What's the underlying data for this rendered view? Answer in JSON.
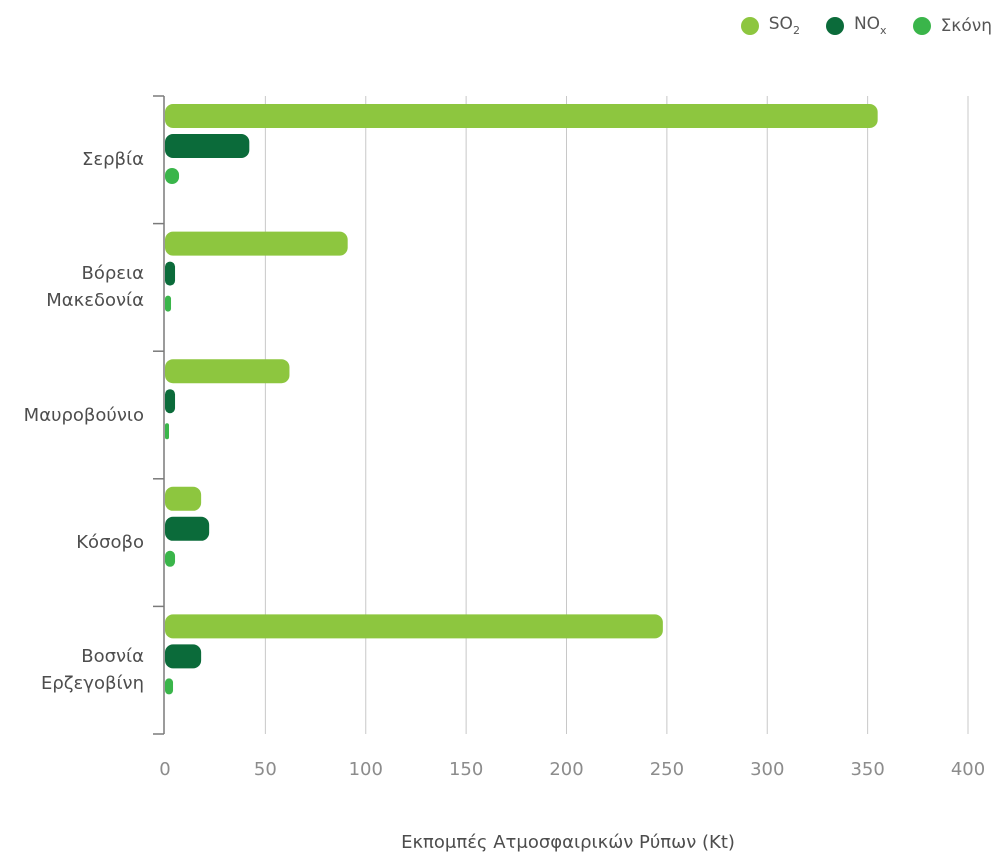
{
  "chart_data": {
    "type": "bar",
    "orientation": "horizontal",
    "categories": [
      "Σερβία",
      "Βόρεια Μακεδονία",
      "Μαυροβούνιο",
      "Κόσοβο",
      "Βοσνία Ερζεγοβίνη"
    ],
    "category_lines": [
      [
        "Σερβία"
      ],
      [
        "Βόρεια",
        "Μακεδονία"
      ],
      [
        "Μαυροβούνιο"
      ],
      [
        "Κόσοβο"
      ],
      [
        "Βοσνία",
        "Ερζεγοβίνη"
      ]
    ],
    "series": [
      {
        "name": "SO2",
        "label_main": "SO",
        "label_sub": "2",
        "color": "#8dc63f",
        "values": [
          355,
          91,
          62,
          18,
          248
        ]
      },
      {
        "name": "NOx",
        "label_main": "NO",
        "label_sub": "x",
        "color": "#0b6b3a",
        "values": [
          42,
          5,
          5,
          22,
          18
        ]
      },
      {
        "name": "Σκόνη",
        "label_main": "Σκόνη",
        "label_sub": "",
        "color": "#3ab54a",
        "values": [
          7,
          3,
          2,
          5,
          4
        ]
      }
    ],
    "xlim": [
      0,
      400
    ],
    "xticks": [
      "0",
      "50",
      "100",
      "150",
      "200",
      "250",
      "300",
      "350",
      "400"
    ],
    "xlabel": "Εκπομπές Ατμοσφαιρικών Ρύπων (Kt)",
    "ylabel": "",
    "title": "",
    "grid": "vertical",
    "legend_position": "top-right"
  }
}
